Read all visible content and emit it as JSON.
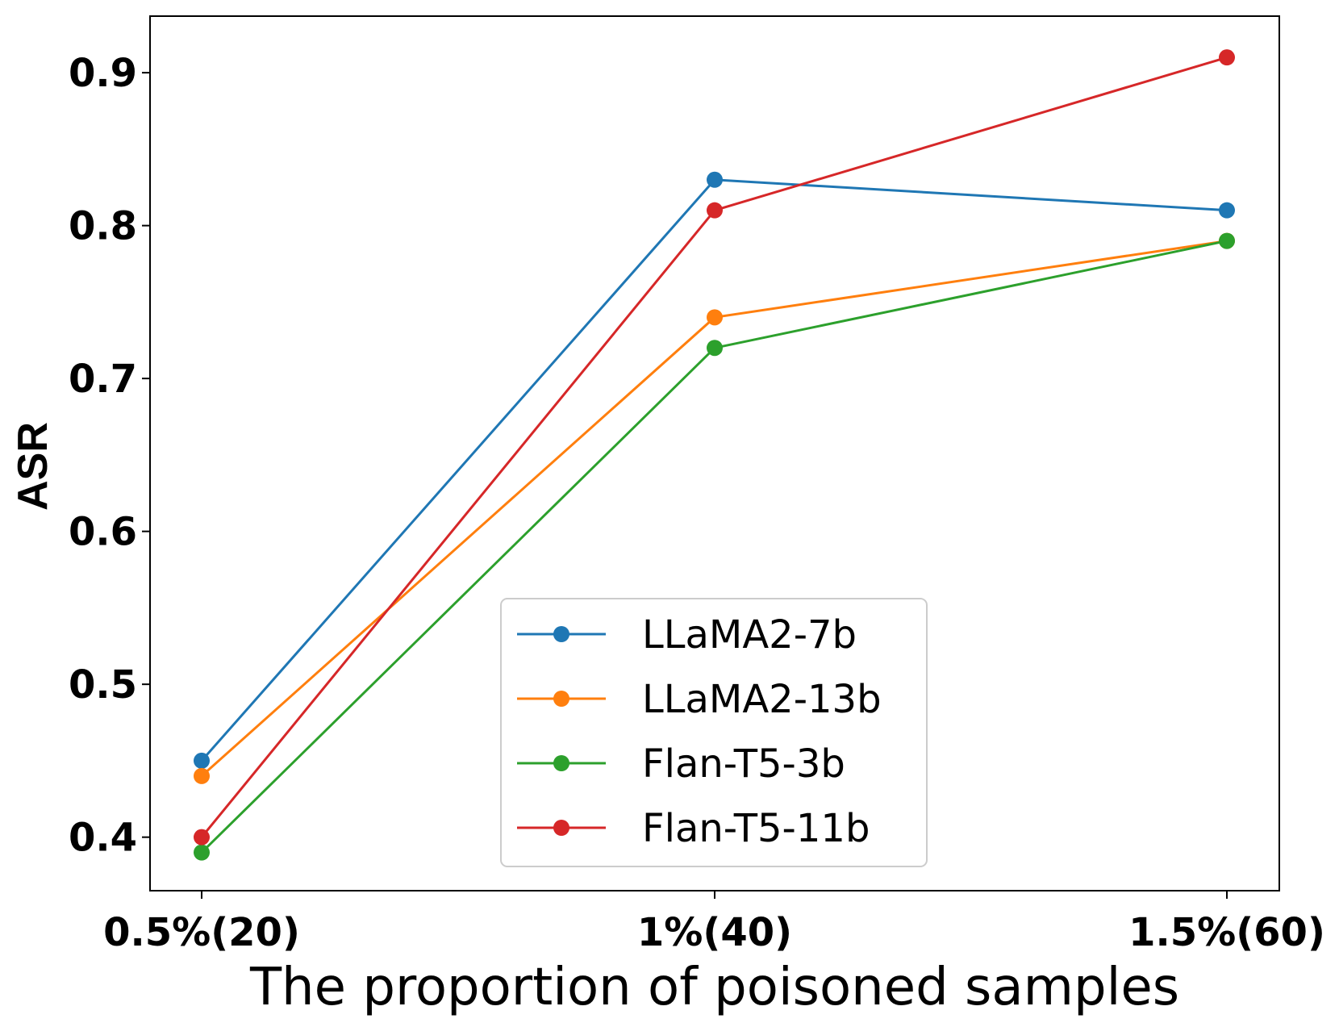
{
  "chart_data": {
    "type": "line",
    "title": "",
    "xlabel": "The proportion of poisoned samples",
    "ylabel": "ASR",
    "categories": [
      "0.5%(20)",
      "1%(40)",
      "1.5%(60)"
    ],
    "yticks": [
      "0.4",
      "0.5",
      "0.6",
      "0.7",
      "0.8",
      "0.9"
    ],
    "ylim": [
      0.365,
      0.937
    ],
    "grid": false,
    "legend_position": "lower-center",
    "series": [
      {
        "name": "LLaMA2-7b",
        "color": "#1f77b4",
        "values": [
          0.45,
          0.83,
          0.81
        ]
      },
      {
        "name": "LLaMA2-13b",
        "color": "#ff7f0e",
        "values": [
          0.44,
          0.74,
          0.79
        ]
      },
      {
        "name": "Flan-T5-3b",
        "color": "#2ca02c",
        "values": [
          0.39,
          0.72,
          0.79
        ]
      },
      {
        "name": "Flan-T5-11b",
        "color": "#d62728",
        "values": [
          0.4,
          0.81,
          0.91
        ]
      }
    ]
  }
}
